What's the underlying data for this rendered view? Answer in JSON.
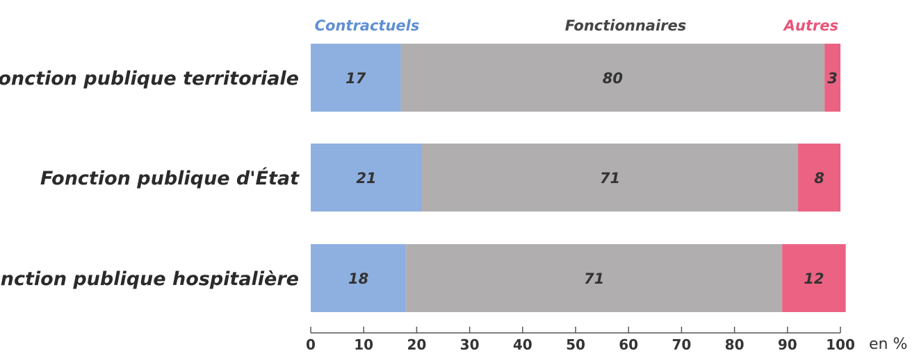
{
  "chart_data": {
    "type": "bar",
    "orientation": "horizontal",
    "stacked": true,
    "categories": [
      "Fonction publique territoriale",
      "Fonction publique d'État",
      "Fonction publique hospitalière"
    ],
    "series": [
      {
        "name": "Contractuels",
        "values": [
          17,
          21,
          18
        ],
        "color": "#8eb0e0"
      },
      {
        "name": "Fonctionnaires",
        "values": [
          80,
          71,
          71
        ],
        "color": "#b0aeaf"
      },
      {
        "name": "Autres",
        "values": [
          3,
          8,
          12
        ],
        "color": "#ec6283"
      }
    ],
    "xlim": [
      0,
      100
    ],
    "xticks": [
      0,
      10,
      20,
      30,
      40,
      50,
      60,
      70,
      80,
      90,
      100
    ],
    "unit_label": "en %",
    "legend_position": "top",
    "grid": false
  },
  "colors": {
    "axis": "#555555",
    "text": "#2b2b2b",
    "label_fonctionnaires": "#444444"
  }
}
